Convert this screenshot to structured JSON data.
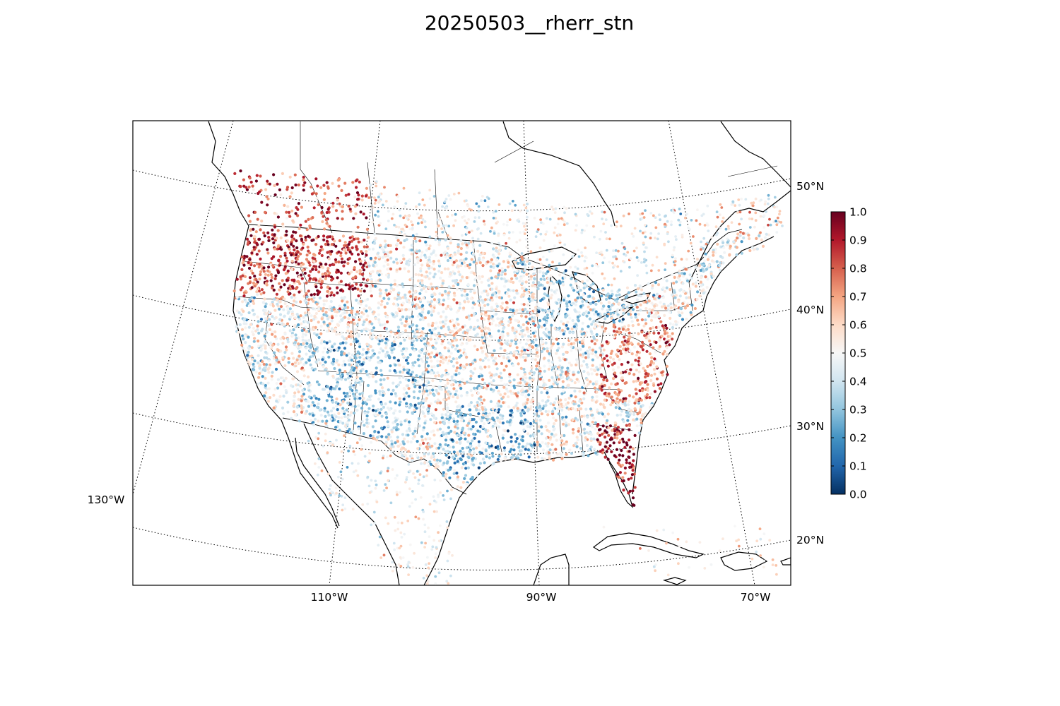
{
  "figure": {
    "title": "20250503__rherr_stn"
  },
  "map": {
    "projection": "lambert-conformal",
    "region": "North America (CONUS focus)",
    "graticule_style": "dotted",
    "lon_labels": [
      "130°W",
      "110°W",
      "90°W",
      "70°W"
    ],
    "lat_labels": [
      "50°N",
      "40°N",
      "30°N",
      "20°N"
    ]
  },
  "colorbar": {
    "colormap": "RdBu_r",
    "min": 0.0,
    "max": 1.0,
    "tick_labels": [
      "0.0",
      "0.1",
      "0.2",
      "0.3",
      "0.4",
      "0.5",
      "0.6",
      "0.7",
      "0.8",
      "0.9",
      "1.0"
    ],
    "colors": {
      "low": "#053061",
      "mid": "#f7f7f7",
      "high": "#67001f"
    }
  },
  "chart_data": {
    "type": "scatter",
    "title": "20250503__rherr_stn",
    "value_range": [
      0.0,
      1.0
    ],
    "notes_visible": "thousands of station dots colored by value 0.0–1.0",
    "regional_tendencies": [
      {
        "region": "Northern Rockies / Montana / Idaho",
        "typical_value": 0.9
      },
      {
        "region": "Florida peninsula",
        "typical_value": 0.9
      },
      {
        "region": "Mid-Atlantic / Virginia / North Carolina",
        "typical_value": 0.75
      },
      {
        "region": "Great Plains",
        "typical_value": 0.5
      },
      {
        "region": "Southwest / Arizona / Utah",
        "typical_value": 0.3
      },
      {
        "region": "Pacific coast / California",
        "typical_value": 0.35
      },
      {
        "region": "Great Lakes / Midwest",
        "typical_value": 0.35
      },
      {
        "region": "Southeast Texas / Gulf coast",
        "typical_value": 0.25
      }
    ]
  }
}
